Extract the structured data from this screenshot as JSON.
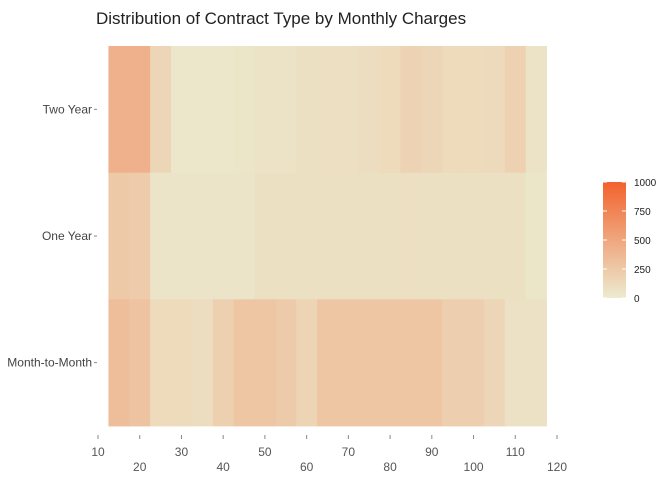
{
  "chart_data": {
    "type": "heatmap",
    "title": "Distribution of Contract Type by Monthly Charges",
    "xlabel": "",
    "ylabel": "",
    "x_ticks": [
      10,
      20,
      30,
      40,
      50,
      60,
      70,
      80,
      90,
      100,
      110,
      120
    ],
    "xlim": [
      10,
      120
    ],
    "bin_width": 5,
    "bins": [
      15,
      20,
      25,
      30,
      35,
      40,
      45,
      50,
      55,
      60,
      65,
      70,
      75,
      80,
      85,
      90,
      95,
      100,
      105,
      110,
      115
    ],
    "categories": [
      "Month-to-Month",
      "One Year",
      "Two Year"
    ],
    "series": [
      {
        "name": "Two Year",
        "values": [
          420,
          420,
          150,
          30,
          30,
          30,
          40,
          60,
          60,
          80,
          90,
          90,
          100,
          120,
          180,
          150,
          120,
          120,
          130,
          190,
          60
        ]
      },
      {
        "name": "One Year",
        "values": [
          250,
          230,
          50,
          50,
          50,
          50,
          50,
          80,
          80,
          80,
          80,
          80,
          80,
          80,
          90,
          80,
          80,
          80,
          80,
          80,
          40
        ]
      },
      {
        "name": "Month-to-Month",
        "values": [
          330,
          290,
          120,
          120,
          100,
          200,
          270,
          270,
          240,
          170,
          270,
          270,
          270,
          270,
          270,
          270,
          210,
          210,
          150,
          70,
          70
        ]
      }
    ],
    "legend": {
      "position": "right",
      "ticks": [
        0,
        250,
        500,
        750,
        1000
      ],
      "max": 1000
    },
    "colors": {
      "low": "#ECEBD0",
      "high": "#F2622D"
    },
    "grid": false
  }
}
